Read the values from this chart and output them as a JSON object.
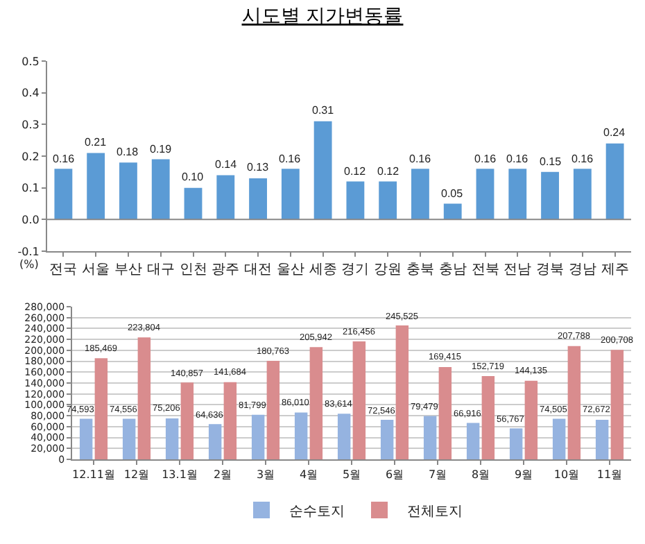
{
  "chart_data": [
    {
      "type": "bar",
      "title": "시도별 지가변동률",
      "ylabel": "(%)",
      "categories": [
        "전국",
        "서울",
        "부산",
        "대구",
        "인천",
        "광주",
        "대전",
        "울산",
        "세종",
        "경기",
        "강원",
        "충북",
        "충남",
        "전북",
        "전남",
        "경북",
        "경남",
        "제주"
      ],
      "values": [
        0.16,
        0.21,
        0.18,
        0.19,
        0.1,
        0.14,
        0.13,
        0.16,
        0.31,
        0.12,
        0.12,
        0.16,
        0.05,
        0.16,
        0.16,
        0.15,
        0.16,
        0.24
      ],
      "value_labels": [
        "0.16",
        "0.21",
        "0.18",
        "0.19",
        "0.10",
        "0.14",
        "0.13",
        "0.16",
        "0.31",
        "0.12",
        "0.12",
        "0.16",
        "0.05",
        "0.16",
        "0.16",
        "0.15",
        "0.16",
        "0.24"
      ],
      "color": "#5b9bd5",
      "ylim": [
        -0.1,
        0.5
      ],
      "yticks": [
        {
          "value": -0.1,
          "label": "-0.1"
        },
        {
          "value": 0,
          "label": "0.0"
        },
        {
          "value": 0.1,
          "label": "0.1"
        },
        {
          "value": 0.2,
          "label": "0.2"
        },
        {
          "value": 0.3,
          "label": "0.3"
        },
        {
          "value": 0.4,
          "label": "0.4"
        },
        {
          "value": 0.5,
          "label": "0.5"
        }
      ],
      "grid": false,
      "legend": false,
      "ref_lines": [
        {
          "axis": "y",
          "value": 0,
          "color": "#888888"
        }
      ]
    },
    {
      "type": "bar",
      "categories": [
        "12.11월",
        "12월",
        "13.1월",
        "2월",
        "3월",
        "4월",
        "5월",
        "6월",
        "7월",
        "8월",
        "9월",
        "10월",
        "11월"
      ],
      "series": [
        {
          "name": "순수토지",
          "color": "#95b3e0",
          "values": [
            74593,
            74556,
            75206,
            64636,
            81799,
            86010,
            83614,
            72546,
            79479,
            66916,
            56767,
            74505,
            72672
          ],
          "value_labels": [
            "74,593",
            "74,556",
            "75,206",
            "64,636",
            "81,799",
            "86,010",
            "83,614",
            "72,546",
            "79,479",
            "66,916",
            "56,767",
            "74,505",
            "72,672"
          ]
        },
        {
          "name": "전체토지",
          "color": "#d98c8e",
          "values": [
            185469,
            223804,
            140857,
            141684,
            180763,
            205942,
            216456,
            245525,
            169415,
            152719,
            144135,
            207788,
            200708
          ],
          "value_labels": [
            "185,469",
            "223,804",
            "140,857",
            "141,684",
            "180,763",
            "205,942",
            "216,456",
            "245,525",
            "169,415",
            "152,719",
            "144,135",
            "207,788",
            "200,708"
          ]
        }
      ],
      "ylim": [
        0,
        280000
      ],
      "yticks": [
        {
          "value": 0,
          "label": "0"
        },
        {
          "value": 20000,
          "label": "20,000"
        },
        {
          "value": 40000,
          "label": "40,000"
        },
        {
          "value": 60000,
          "label": "60,000"
        },
        {
          "value": 80000,
          "label": "80,000"
        },
        {
          "value": 100000,
          "label": "100,000"
        },
        {
          "value": 120000,
          "label": "120,000"
        },
        {
          "value": 140000,
          "label": "140,000"
        },
        {
          "value": 160000,
          "label": "160,000"
        },
        {
          "value": 180000,
          "label": "180,000"
        },
        {
          "value": 200000,
          "label": "200,000"
        },
        {
          "value": 220000,
          "label": "220,000"
        },
        {
          "value": 240000,
          "label": "240,000"
        },
        {
          "value": 260000,
          "label": "260,000"
        },
        {
          "value": 280000,
          "label": "280,000"
        }
      ],
      "grid": "y",
      "legend": "bottom"
    }
  ]
}
